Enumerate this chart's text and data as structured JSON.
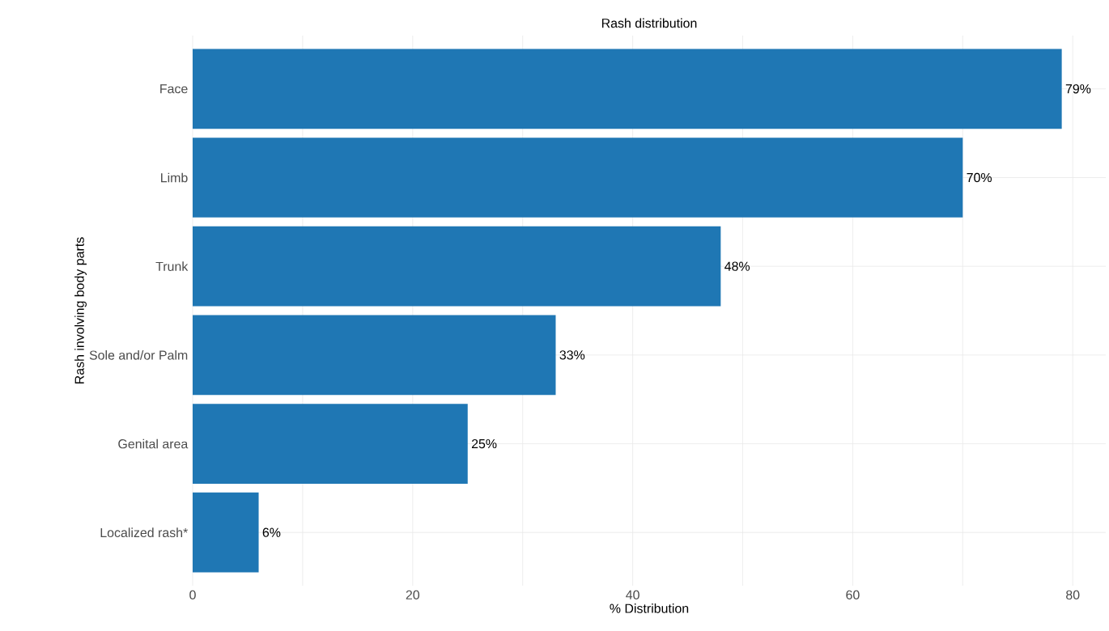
{
  "chart_data": {
    "type": "bar",
    "orientation": "horizontal",
    "title": "Rash distribution",
    "xlabel": "% Distribution",
    "ylabel": "Rash involving body parts",
    "categories": [
      "Face",
      "Limb",
      "Trunk",
      "Sole and/or Palm",
      "Genital area",
      "Localized rash*"
    ],
    "values": [
      79,
      70,
      48,
      33,
      25,
      6
    ],
    "value_labels": [
      "79%",
      "70%",
      "48%",
      "33%",
      "25%",
      "6%"
    ],
    "color": "#1f77b4",
    "xlim": [
      0,
      83
    ],
    "xticks": [
      0,
      {
        "value": 10,
        "label": null
      },
      20,
      {
        "value": 30,
        "label": null
      },
      40,
      {
        "value": 50,
        "label": null
      },
      60,
      {
        "value": 70,
        "label": null
      },
      80
    ],
    "grid": true
  }
}
